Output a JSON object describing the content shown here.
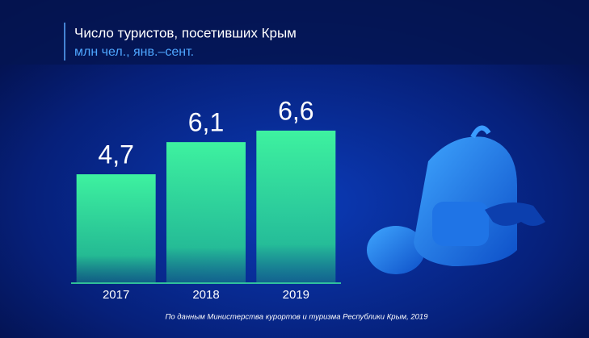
{
  "chart_data": {
    "type": "bar",
    "title": "Число туристов, посетивших Крым",
    "subtitle": "млн чел., янв.–сент.",
    "categories": [
      "2017",
      "2018",
      "2019"
    ],
    "values": [
      4.7,
      6.1,
      6.6
    ],
    "value_labels": [
      "4,7",
      "6,1",
      "6,6"
    ],
    "color": "#3ef2a0",
    "source": "По данным Министерства курортов и туризма Республики Крым, 2019"
  }
}
